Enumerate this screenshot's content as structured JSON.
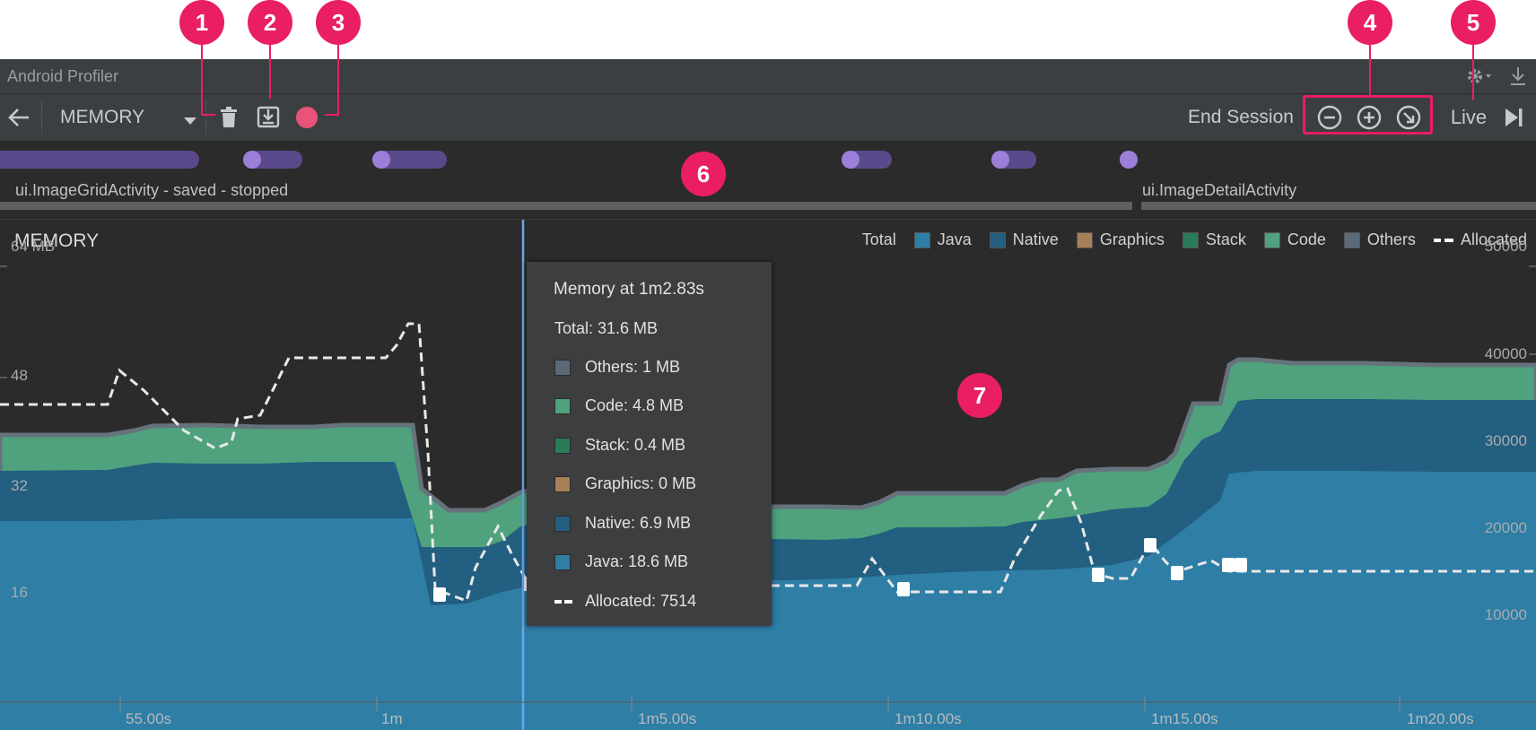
{
  "callouts": [
    "1",
    "2",
    "3",
    "4",
    "5",
    "6",
    "7"
  ],
  "window": {
    "title": "Android Profiler"
  },
  "toolbar": {
    "profiler_select": "MEMORY",
    "end_session_label": "End Session",
    "live_label": "Live"
  },
  "events": {
    "activities": [
      {
        "label": "ui.ImageGridActivity - saved - stopped"
      },
      {
        "label": "ui.ImageDetailActivity"
      }
    ]
  },
  "memory": {
    "title": "MEMORY",
    "left_axis": [
      "64 MB",
      "48",
      "32",
      "16"
    ],
    "right_axis": [
      "50000",
      "40000",
      "30000",
      "20000",
      "10000"
    ],
    "time_axis": [
      "55.00s",
      "1m",
      "1m5.00s",
      "1m10.00s",
      "1m15.00s",
      "1m20.00s"
    ],
    "legend": [
      {
        "label": "Total",
        "color": ""
      },
      {
        "label": "Java",
        "color": "#2e7ea6"
      },
      {
        "label": "Native",
        "color": "#225f80"
      },
      {
        "label": "Graphics",
        "color": "#a77f58"
      },
      {
        "label": "Stack",
        "color": "#2b7a58"
      },
      {
        "label": "Code",
        "color": "#4fa27d"
      },
      {
        "label": "Others",
        "color": "#5a6a78"
      },
      {
        "label": "Allocated",
        "color": "#ffffff"
      }
    ]
  },
  "tooltip": {
    "title": "Memory at 1m2.83s",
    "total": "Total: 31.6 MB",
    "items": [
      {
        "label": "Others: 1 MB",
        "color": "#5a6a78"
      },
      {
        "label": "Code: 4.8 MB",
        "color": "#4fa27d"
      },
      {
        "label": "Stack: 0.4 MB",
        "color": "#2b7a58"
      },
      {
        "label": "Graphics: 0 MB",
        "color": "#a77f58"
      },
      {
        "label": "Native: 6.9 MB",
        "color": "#225f80"
      },
      {
        "label": "Java: 18.6 MB",
        "color": "#2e7ea6"
      },
      {
        "label": "Allocated: 7514",
        "color": ""
      }
    ]
  },
  "colors": {
    "accent": "#e91e63",
    "record": "#e8537a",
    "java": "#2e7ea6",
    "native": "#225f80",
    "code": "#4fa27d",
    "others": "#5a6a78",
    "cursor": "#6aa6e8"
  }
}
